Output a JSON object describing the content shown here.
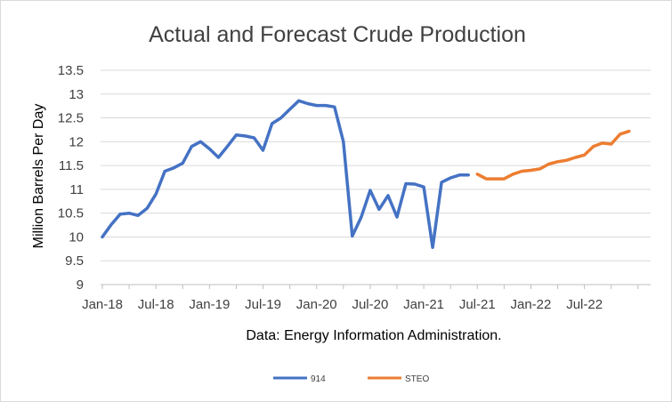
{
  "chart_data": {
    "type": "line",
    "title": "Actual and Forecast Crude Production",
    "ylabel": "Million Barrels Per Day",
    "xlabel": "Data: Energy Information Administration.",
    "ylim": [
      9,
      13.5
    ],
    "yticks": [
      9,
      9.5,
      10,
      10.5,
      11,
      11.5,
      12,
      12.5,
      13,
      13.5
    ],
    "ytick_labels": [
      "9",
      "9.5",
      "10",
      "10.5",
      "11",
      "11.5",
      "12",
      "12.5",
      "13",
      "13.5"
    ],
    "x_start": "Jan-18",
    "x_tick_labels": [
      "Jan-18",
      "Jul-18",
      "Jan-19",
      "Jul-19",
      "Jan-20",
      "Jul-20",
      "Jan-21",
      "Jul-21",
      "Jan-22",
      "Jul-22"
    ],
    "grid": true,
    "legend_position": "bottom",
    "series": [
      {
        "name": "914",
        "color": "#4472c4",
        "x": [
          "Jan-18",
          "Feb-18",
          "Mar-18",
          "Apr-18",
          "May-18",
          "Jun-18",
          "Jul-18",
          "Aug-18",
          "Sep-18",
          "Oct-18",
          "Nov-18",
          "Dec-18",
          "Jan-19",
          "Feb-19",
          "Mar-19",
          "Apr-19",
          "May-19",
          "Jun-19",
          "Jul-19",
          "Aug-19",
          "Sep-19",
          "Oct-19",
          "Nov-19",
          "Dec-19",
          "Jan-20",
          "Feb-20",
          "Mar-20",
          "Apr-20",
          "May-20",
          "Jun-20",
          "Jul-20",
          "Aug-20",
          "Sep-20",
          "Oct-20",
          "Nov-20",
          "Dec-20",
          "Jan-21",
          "Feb-21",
          "Mar-21",
          "Apr-21",
          "May-21",
          "Jun-21"
        ],
        "values": [
          10.0,
          10.26,
          10.48,
          10.5,
          10.45,
          10.6,
          10.9,
          11.38,
          11.45,
          11.55,
          11.9,
          12.0,
          11.85,
          11.67,
          11.9,
          12.14,
          12.12,
          12.08,
          11.82,
          12.38,
          12.5,
          12.68,
          12.86,
          12.8,
          12.76,
          12.76,
          12.73,
          12.0,
          10.02,
          10.42,
          10.98,
          10.58,
          10.87,
          10.42,
          11.12,
          11.11,
          11.05,
          9.78,
          11.15,
          11.24,
          11.3,
          11.3
        ]
      },
      {
        "name": "STEO",
        "color": "#ed7d31",
        "x": [
          "Jul-21",
          "Aug-21",
          "Sep-21",
          "Oct-21",
          "Nov-21",
          "Dec-21",
          "Jan-22",
          "Feb-22",
          "Mar-22",
          "Apr-22",
          "May-22",
          "Jun-22",
          "Jul-22",
          "Aug-22",
          "Sep-22",
          "Oct-22",
          "Nov-22",
          "Dec-22"
        ],
        "values": [
          11.32,
          11.22,
          11.22,
          11.22,
          11.32,
          11.38,
          11.4,
          11.43,
          11.53,
          11.58,
          11.61,
          11.67,
          11.72,
          11.9,
          11.97,
          11.95,
          12.16,
          12.22
        ]
      }
    ]
  }
}
